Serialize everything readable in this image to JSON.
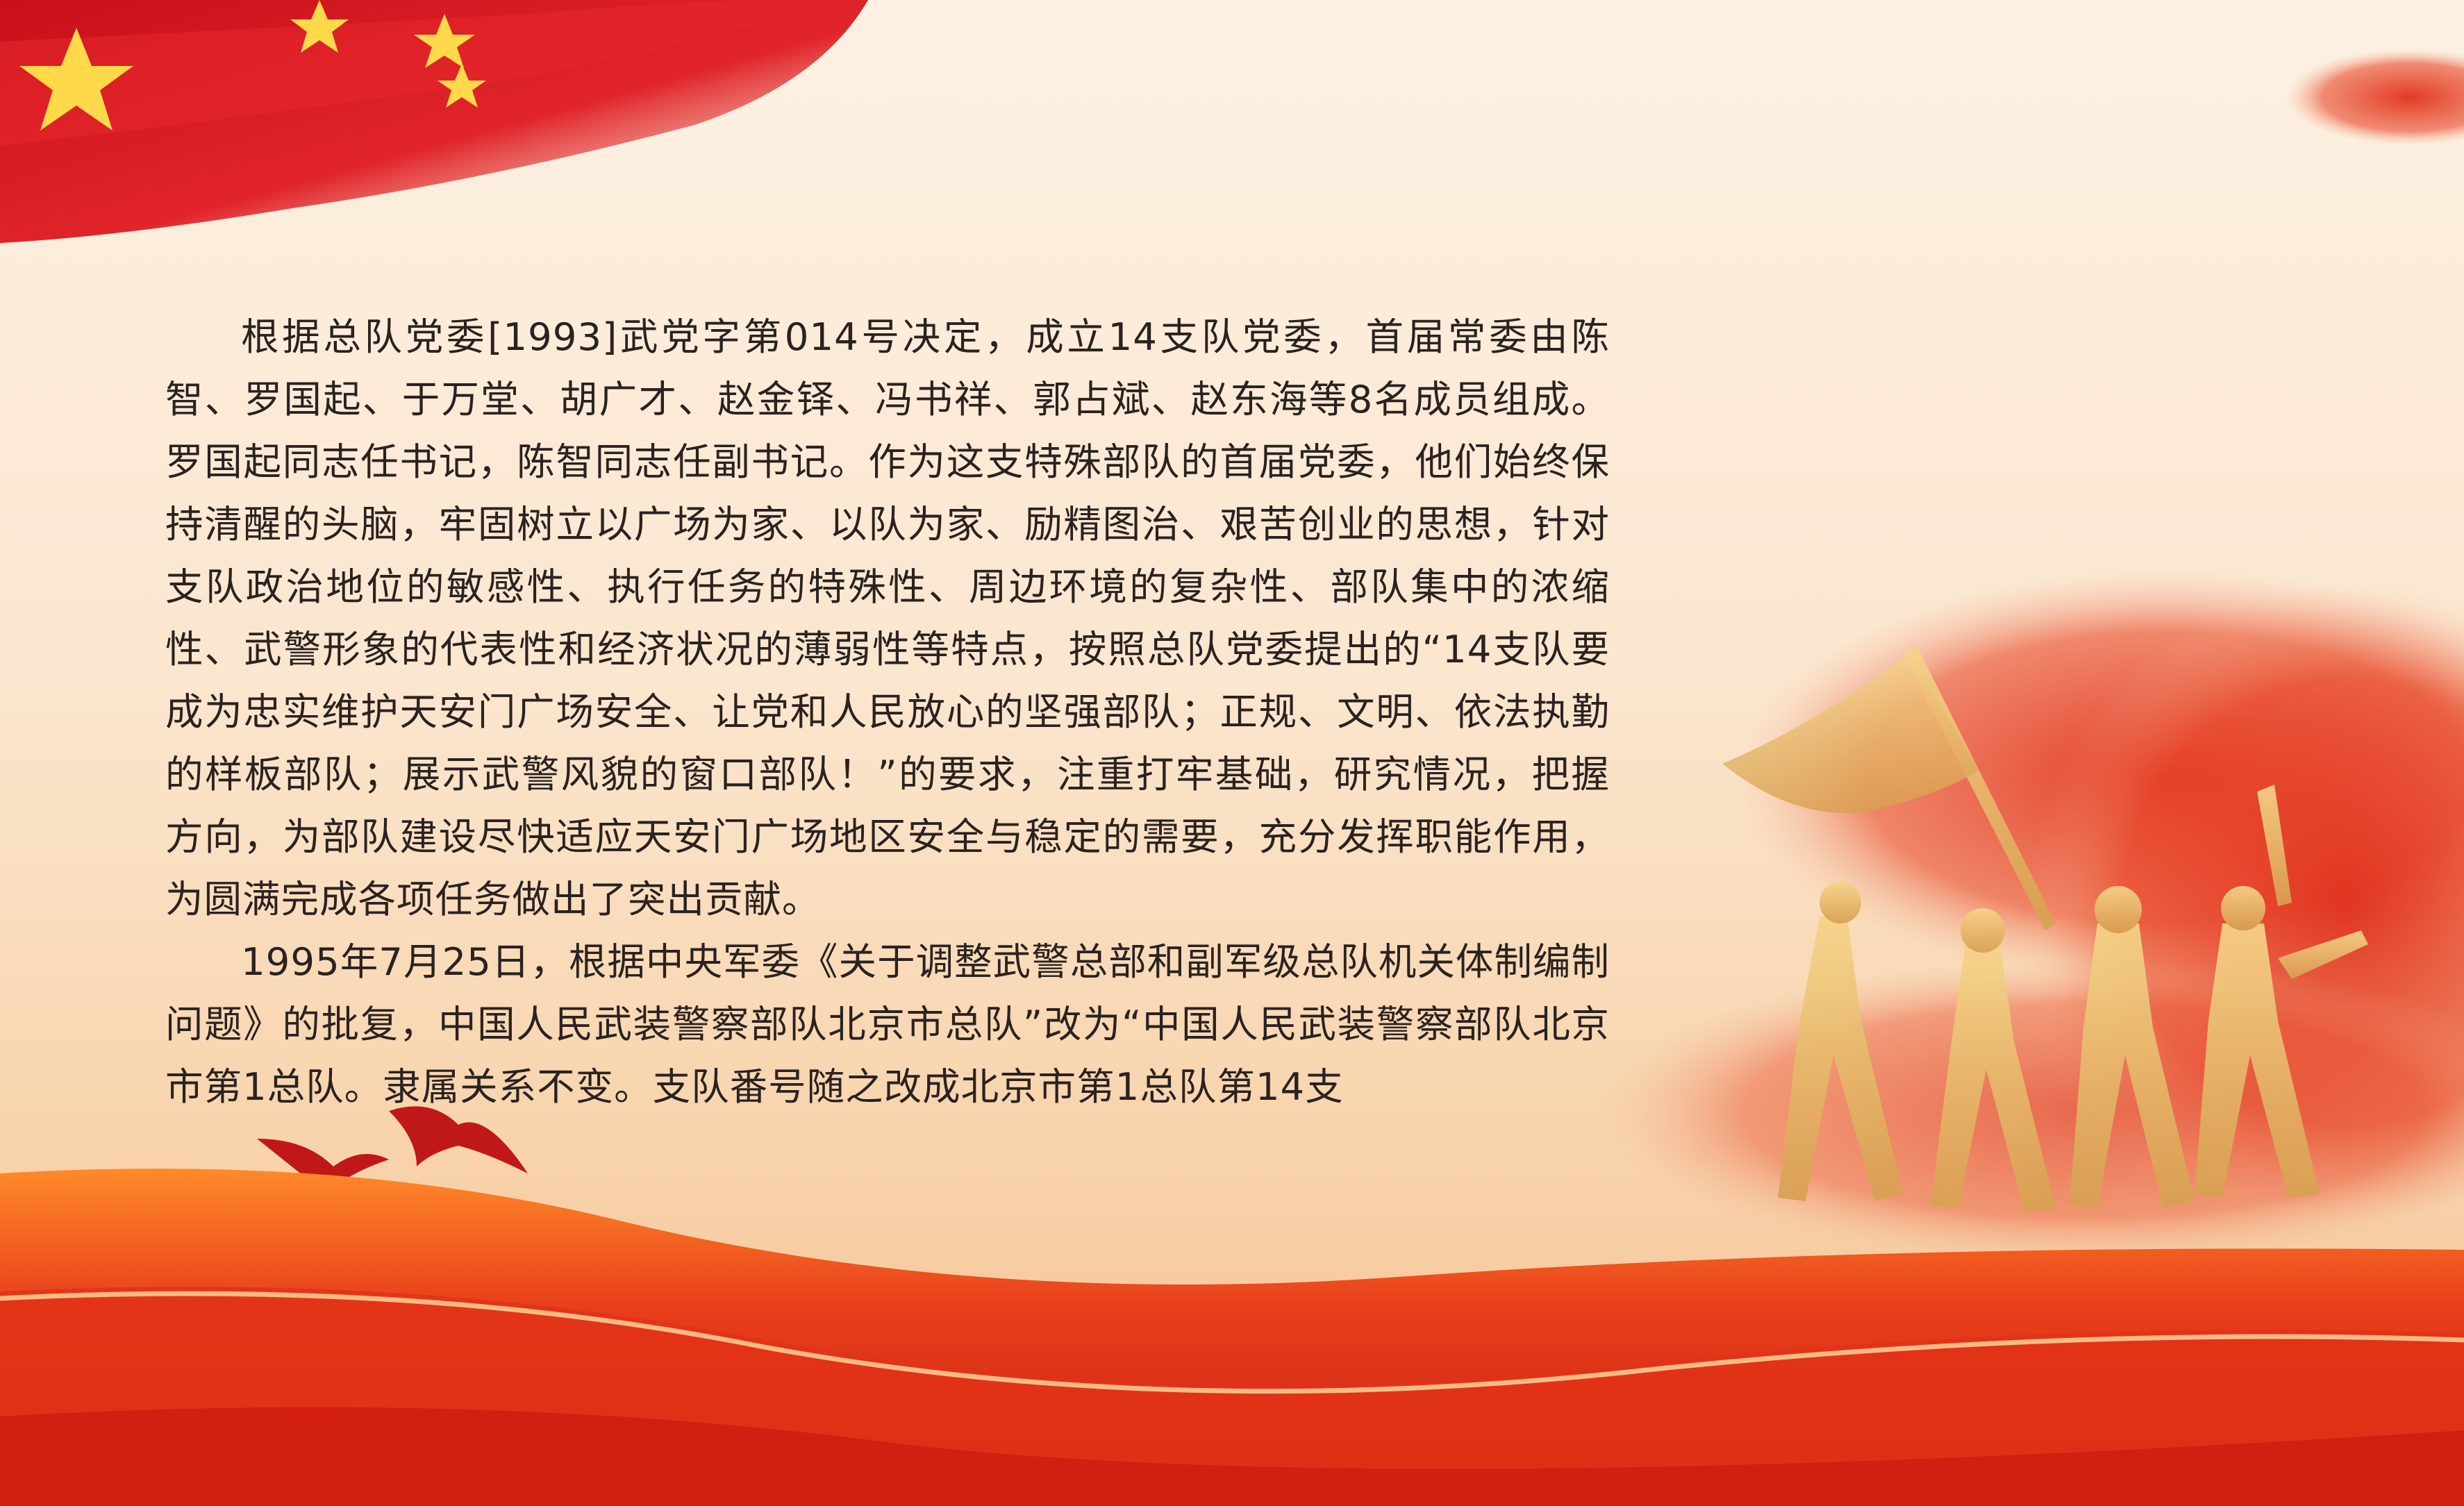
{
  "document": {
    "paragraphs": [
      "根据总队党委[1993]武党字第014号决定，成立14支队党委，首届常委由陈智、罗国起、于万堂、胡广才、赵金铎、冯书祥、郭占斌、赵东海等8名成员组成。罗国起同志任书记，陈智同志任副书记。作为这支特殊部队的首届党委，他们始终保持清醒的头脑，牢固树立以广场为家、以队为家、励精图治、艰苦创业的思想，针对支队政治地位的敏感性、执行任务的特殊性、周边环境的复杂性、部队集中的浓缩性、武警形象的代表性和经济状况的薄弱性等特点，按照总队党委提出的“14支队要成为忠实维护天安门广场安全、让党和人民放心的坚强部队；正规、文明、依法执勤的样板部队；展示武警风貌的窗口部队！”的要求，注重打牢基础，研究情况，把握方向，为部队建设尽快适应天安门广场地区安全与稳定的需要，充分发挥职能作用，为圆满完成各项任务做出了突出贡献。",
      "1995年7月25日，根据中央军委《关于调整武警总部和副军级总队机关体制编制问题》的批复，中国人民武装警察部队北京市总队”改为“中国人民武装警察部队北京市第1总队。隶属关系不变。支队番号随之改成北京市第1总队第14支"
    ]
  },
  "decorations": {
    "flag_color": "#d8141a",
    "star_color": "#ffd94a",
    "wave_color": "#e63a1a",
    "glow_color": "#ffdca0",
    "gold_color": "#e8c070",
    "bird_color": "#c01818",
    "icons": [
      "flag-icon",
      "star-icon",
      "bird-icon",
      "soldiers-silhouette-icon"
    ]
  }
}
